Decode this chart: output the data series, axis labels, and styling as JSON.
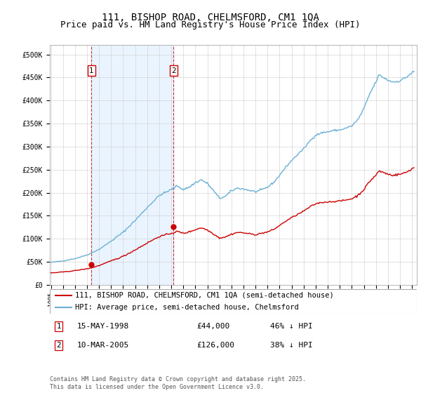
{
  "title": "111, BISHOP ROAD, CHELMSFORD, CM1 1QA",
  "subtitle": "Price paid vs. HM Land Registry's House Price Index (HPI)",
  "ylim": [
    0,
    520000
  ],
  "yticks": [
    0,
    50000,
    100000,
    150000,
    200000,
    250000,
    300000,
    350000,
    400000,
    450000,
    500000
  ],
  "yticklabels": [
    "£0",
    "£50K",
    "£100K",
    "£150K",
    "£200K",
    "£250K",
    "£300K",
    "£350K",
    "£400K",
    "£450K",
    "£500K"
  ],
  "hpi_color": "#6ab0d4",
  "price_color": "#cc0000",
  "vline_color": "#cc0000",
  "bg_highlight_color": "#ddeeff",
  "purchase1_date_num": 1998.37,
  "purchase1_price": 44000,
  "purchase2_date_num": 2005.19,
  "purchase2_price": 126000,
  "legend_label_red": "111, BISHOP ROAD, CHELMSFORD, CM1 1QA (semi-detached house)",
  "legend_label_blue": "HPI: Average price, semi-detached house, Chelmsford",
  "footnote": "Contains HM Land Registry data © Crown copyright and database right 2025.\nThis data is licensed under the Open Government Licence v3.0.",
  "title_fontsize": 10,
  "subtitle_fontsize": 9,
  "tick_fontsize": 7,
  "legend_fontsize": 7.5,
  "annot_fontsize": 8,
  "footnote_fontsize": 6
}
